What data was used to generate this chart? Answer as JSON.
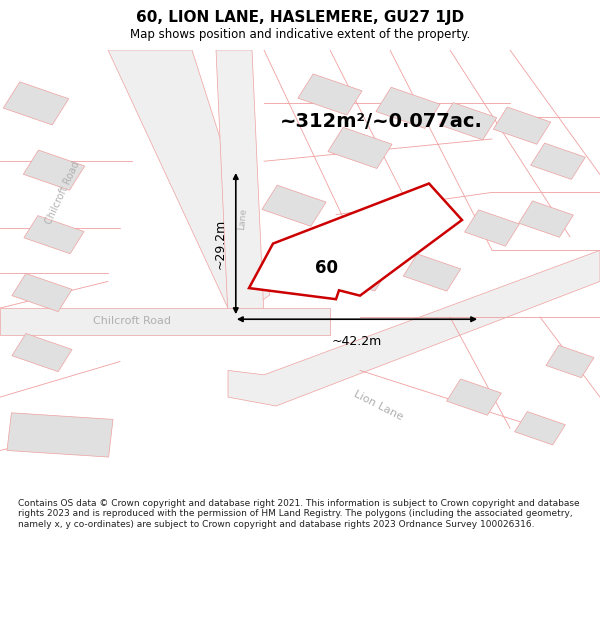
{
  "title": "60, LION LANE, HASLEMERE, GU27 1JD",
  "subtitle": "Map shows position and indicative extent of the property.",
  "area_text": "~312m²/~0.077ac.",
  "width_label": "~42.2m",
  "height_label": "~29.2m",
  "property_number": "60",
  "footer": "Contains OS data © Crown copyright and database right 2021. This information is subject to Crown copyright and database rights 2023 and is reproduced with the permission of HM Land Registry. The polygons (including the associated geometry, namely x, y co-ordinates) are subject to Crown copyright and database rights 2023 Ordnance Survey 100026316.",
  "bg_color": "#ffffff",
  "property_edge_color": "#cc0000",
  "road_pink": "#f0a0a0",
  "bld_fill": "#e0e0e0",
  "bld_edge": "#e0a0a0",
  "road_fill": "#f5f5f5",
  "map_bg": "#f8f8f8",
  "dim_color": "#000000",
  "label_gray": "#b0b0b0"
}
